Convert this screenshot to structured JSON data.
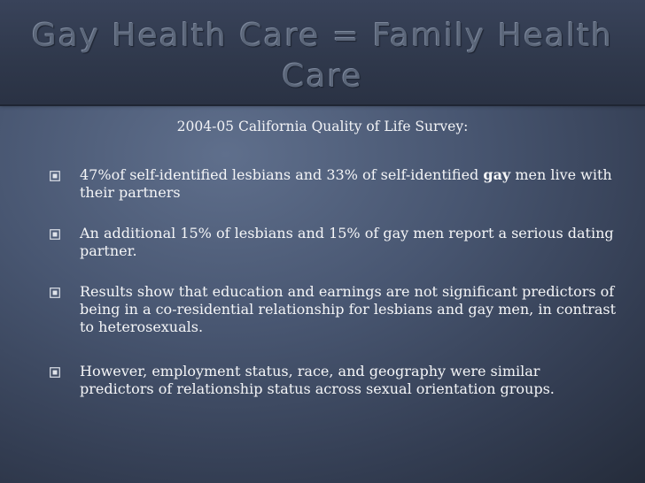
{
  "title": "Gay Health Care = Family Health Care",
  "subtitle": "2004-05 California Quality of Life Survey:",
  "bullets": [
    {
      "text_before": "47%of self-identified lesbians and 33% of self-identified ",
      "text_bold": "gay",
      "text_after": " men live with  their partners"
    },
    {
      "text": "An additional 15% of lesbians and 15% of gay men report a serious dating partner."
    },
    {
      "text": "Results show that education and earnings are not significant predictors of being in a co-residential relationship for lesbians and gay men, in contrast to heterosexuals."
    },
    {
      "text": "However, employment status, race, and geography were similar predictors of relationship status across sexual orientation groups."
    }
  ],
  "icons": {
    "bullet": "square-bullet-icon"
  },
  "colors": {
    "background": "#485671",
    "header": "#2f384b",
    "text": "#f4f5f7",
    "title": "#5b6679"
  }
}
